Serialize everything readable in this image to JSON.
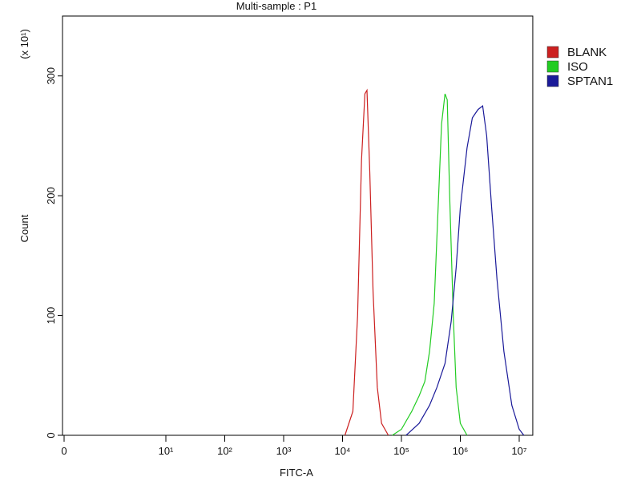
{
  "chart_data": {
    "type": "line",
    "title": "Multi-sample : P1",
    "x_label": "FITC-A",
    "y_label": "Count",
    "y_multiplier": "(x 10¹)",
    "xscale": "biexponential",
    "xlim": [
      0,
      17000000
    ],
    "xticks": [
      0,
      {
        "value": 10,
        "label": "10¹"
      },
      {
        "value": 100,
        "label": "10²"
      },
      {
        "value": 1000,
        "label": "10³"
      },
      {
        "value": 10000,
        "label": "10⁴"
      },
      {
        "value": 100000,
        "label": "10⁵"
      },
      {
        "value": 1000000,
        "label": "10⁶"
      },
      {
        "value": 10000000,
        "label": "10⁷"
      }
    ],
    "ylim": [
      0,
      350
    ],
    "yticks": [
      0,
      100,
      200,
      300
    ],
    "legend": "right",
    "series": [
      {
        "name": "BLANK",
        "color": "#cc2020",
        "x": [
          11000,
          15000,
          18000,
          21000,
          24000,
          26000,
          29000,
          33000,
          39000,
          46000,
          60000
        ],
        "values": [
          0,
          20,
          100,
          230,
          285,
          288,
          220,
          120,
          40,
          10,
          0
        ]
      },
      {
        "name": "ISO",
        "color": "#22cc22",
        "x": [
          70000,
          100000,
          150000,
          200000,
          250000,
          300000,
          360000,
          420000,
          480000,
          550000,
          600000,
          660000,
          760000,
          850000,
          1000000,
          1300000
        ],
        "values": [
          0,
          5,
          20,
          33,
          45,
          70,
          110,
          190,
          260,
          285,
          280,
          200,
          100,
          40,
          10,
          0
        ]
      },
      {
        "name": "SPTAN1",
        "color": "#1a1a99",
        "x": [
          120000,
          200000,
          300000,
          400000,
          550000,
          700000,
          850000,
          1000000,
          1300000,
          1600000,
          2000000,
          2400000,
          2800000,
          3400000,
          4200000,
          5500000,
          7500000,
          10000000,
          12000000
        ],
        "values": [
          0,
          10,
          25,
          40,
          60,
          95,
          140,
          190,
          240,
          265,
          272,
          275,
          250,
          190,
          130,
          70,
          25,
          5,
          0
        ]
      }
    ]
  }
}
